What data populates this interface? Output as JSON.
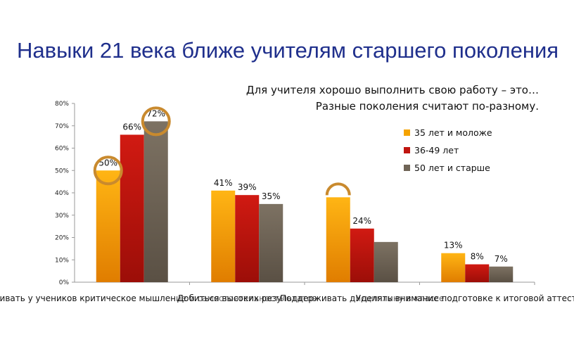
{
  "slide": {
    "title": "Навыки 21 века ближе учителям старшего поколения",
    "subtitle_lines": [
      "Для учителя хорошо выполнить свою работу – это…",
      "Разные поколения считают по-разному."
    ]
  },
  "colors": {
    "title": "#1f2f8c",
    "highlight_circle": "#c98a2e"
  },
  "chart_data": {
    "type": "bar",
    "categories": [
      "Развивать у учеников критическое мышление и самостоятельность",
      "Добиться высоких результатов",
      "Поддерживать дисциплину в классе",
      "Уделять внимание подготовке к итоговой аттестации"
    ],
    "series": [
      {
        "name": "35 лет и моложе",
        "color": "#f5a300",
        "values": [
          50,
          41,
          38,
          13
        ],
        "labels": [
          "50%",
          "41%",
          "",
          "13%"
        ]
      },
      {
        "name": "36-49 лет",
        "color": "#c0150f",
        "values": [
          66,
          39,
          24,
          8
        ],
        "labels": [
          "66%",
          "39%",
          "24%",
          "8%"
        ]
      },
      {
        "name": "50 лет и старше",
        "color": "#6f6456",
        "values": [
          72,
          35,
          18,
          7
        ],
        "labels": [
          "72%",
          "35%",
          "",
          "7%"
        ]
      }
    ],
    "ylim": [
      0,
      80
    ],
    "yticks": [
      "0%",
      "10%",
      "20%",
      "30%",
      "40%",
      "50%",
      "60%",
      "70%",
      "80%"
    ],
    "grid": false,
    "legend_position": "right",
    "highlights": [
      {
        "category_index": 0,
        "series_index": 0,
        "shape": "circle"
      },
      {
        "category_index": 0,
        "series_index": 2,
        "shape": "circle"
      },
      {
        "category_index": 2,
        "series_index": 0,
        "shape": "arc"
      }
    ]
  }
}
